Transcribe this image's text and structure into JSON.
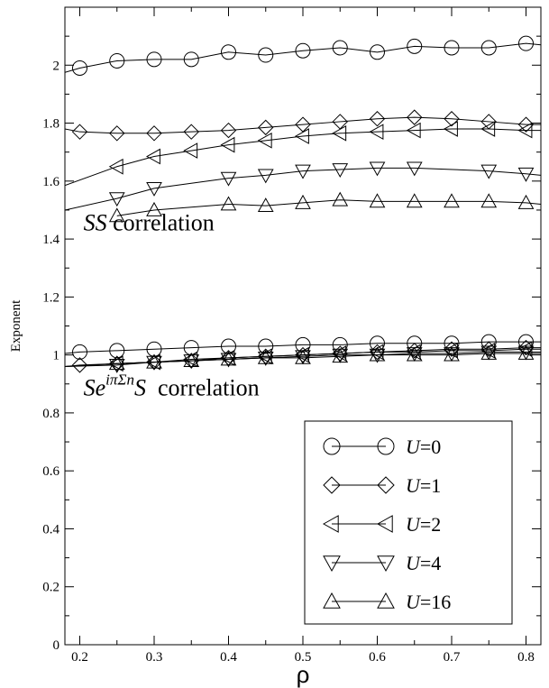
{
  "chart_data": {
    "type": "line",
    "xlabel": "ρ",
    "ylabel": "Exponent",
    "xlim": [
      0.18,
      0.82
    ],
    "ylim": [
      0,
      2.2
    ],
    "x_ticks": [
      0.2,
      0.3,
      0.4,
      0.5,
      0.6,
      0.7,
      0.8
    ],
    "x_tick_labels": [
      "0.2",
      "0.3",
      "0.4",
      "0.5",
      "0.6",
      "0.7",
      "0.8"
    ],
    "y_ticks": [
      0,
      0.2,
      0.4,
      0.6,
      0.8,
      1,
      1.2,
      1.4,
      1.6,
      1.8,
      2
    ],
    "y_tick_labels": [
      "0",
      "0.2",
      "0.4",
      "0.6",
      "0.8",
      "1",
      "1.2",
      "1.4",
      "1.6",
      "1.8",
      "2"
    ],
    "grid": false,
    "legend_position": "bottom-right",
    "annotations": [
      {
        "id": "ss",
        "italic": "SS",
        "text": " correlation",
        "x": 0.205,
        "y": 1.43
      },
      {
        "id": "string",
        "italic": "Se",
        "sup": "iπΣn",
        "italic2": "S",
        "text": "  correlation",
        "x": 0.205,
        "y": 0.86
      }
    ],
    "series": [
      {
        "name": "U=0",
        "var": "U",
        "val": "=0",
        "marker": "circle",
        "group": "ss",
        "x": [
          0.2,
          0.25,
          0.3,
          0.35,
          0.4,
          0.45,
          0.5,
          0.55,
          0.6,
          0.65,
          0.7,
          0.75,
          0.8
        ],
        "y": [
          1.99,
          2.015,
          2.02,
          2.02,
          2.045,
          2.035,
          2.05,
          2.06,
          2.045,
          2.065,
          2.06,
          2.06,
          2.075
        ],
        "ext_left": 1.975,
        "ext_right": 2.07
      },
      {
        "name": "U=1",
        "var": "U",
        "val": "=1",
        "marker": "diamond",
        "group": "ss",
        "x": [
          0.2,
          0.25,
          0.3,
          0.35,
          0.4,
          0.45,
          0.5,
          0.55,
          0.6,
          0.65,
          0.7,
          0.75,
          0.8
        ],
        "y": [
          1.77,
          1.765,
          1.765,
          1.77,
          1.775,
          1.785,
          1.795,
          1.805,
          1.815,
          1.82,
          1.815,
          1.805,
          1.795
        ],
        "ext_left": 1.78,
        "ext_right": 1.795
      },
      {
        "name": "U=2",
        "var": "U",
        "val": "=2",
        "marker": "triangle-left",
        "group": "ss",
        "x": [
          0.25,
          0.3,
          0.35,
          0.4,
          0.45,
          0.5,
          0.55,
          0.6,
          0.65,
          0.7,
          0.75,
          0.8
        ],
        "y": [
          1.65,
          1.685,
          1.705,
          1.725,
          1.74,
          1.755,
          1.765,
          1.77,
          1.775,
          1.78,
          1.78,
          1.775
        ],
        "ext_left": 1.585,
        "ext_right": 1.775
      },
      {
        "name": "U=4",
        "var": "U",
        "val": "=4",
        "marker": "triangle-down",
        "group": "ss",
        "x": [
          0.25,
          0.3,
          0.4,
          0.45,
          0.5,
          0.55,
          0.6,
          0.65,
          0.75,
          0.8
        ],
        "y": [
          1.54,
          1.575,
          1.61,
          1.62,
          1.635,
          1.64,
          1.645,
          1.645,
          1.635,
          1.625
        ],
        "ext_left": 1.5,
        "ext_right": 1.62
      },
      {
        "name": "U=16",
        "var": "U",
        "val": "=16",
        "marker": "triangle-up",
        "group": "ss",
        "x": [
          0.25,
          0.3,
          0.4,
          0.45,
          0.5,
          0.55,
          0.6,
          0.65,
          0.7,
          0.75,
          0.8
        ],
        "y": [
          1.48,
          1.5,
          1.52,
          1.515,
          1.525,
          1.535,
          1.53,
          1.53,
          1.53,
          1.53,
          1.525
        ],
        "ext_left": null,
        "ext_right": 1.52
      },
      {
        "name": "U=0",
        "var": "U",
        "val": "=0",
        "marker": "circle",
        "group": "string",
        "x": [
          0.2,
          0.25,
          0.3,
          0.35,
          0.4,
          0.45,
          0.5,
          0.55,
          0.6,
          0.65,
          0.7,
          0.75,
          0.8
        ],
        "y": [
          1.01,
          1.015,
          1.02,
          1.025,
          1.03,
          1.03,
          1.035,
          1.035,
          1.04,
          1.04,
          1.04,
          1.045,
          1.045
        ],
        "ext_left": 1.005,
        "ext_right": 1.045
      },
      {
        "name": "U=1",
        "var": "U",
        "val": "=1",
        "marker": "diamond",
        "group": "string",
        "x": [
          0.2,
          0.25,
          0.3,
          0.35,
          0.4,
          0.45,
          0.5,
          0.55,
          0.6,
          0.65,
          0.7,
          0.75,
          0.8
        ],
        "y": [
          0.965,
          0.97,
          0.975,
          0.98,
          0.99,
          0.995,
          1.0,
          1.005,
          1.01,
          1.015,
          1.02,
          1.02,
          1.025
        ],
        "ext_left": 0.96,
        "ext_right": 1.025
      },
      {
        "name": "U=2",
        "var": "U",
        "val": "=2",
        "marker": "triangle-left",
        "group": "string",
        "x": [
          0.25,
          0.3,
          0.35,
          0.4,
          0.45,
          0.5,
          0.55,
          0.6,
          0.65,
          0.7,
          0.75,
          0.8
        ],
        "y": [
          0.97,
          0.975,
          0.985,
          0.99,
          0.995,
          1.0,
          1.005,
          1.01,
          1.01,
          1.015,
          1.015,
          1.02
        ],
        "ext_left": 0.96,
        "ext_right": 1.02
      },
      {
        "name": "U=4",
        "var": "U",
        "val": "=4",
        "marker": "triangle-down",
        "group": "string",
        "x": [
          0.25,
          0.3,
          0.35,
          0.4,
          0.45,
          0.5,
          0.55,
          0.6,
          0.65,
          0.7,
          0.75,
          0.8
        ],
        "y": [
          0.965,
          0.975,
          0.98,
          0.985,
          0.99,
          0.995,
          1.0,
          1.0,
          1.005,
          1.005,
          1.01,
          1.01
        ],
        "ext_left": 0.96,
        "ext_right": 1.01
      },
      {
        "name": "U=16",
        "var": "U",
        "val": "=16",
        "marker": "triangle-up",
        "group": "string",
        "x": [
          0.25,
          0.3,
          0.35,
          0.4,
          0.45,
          0.5,
          0.55,
          0.6,
          0.65,
          0.7,
          0.75,
          0.8
        ],
        "y": [
          0.97,
          0.975,
          0.98,
          0.985,
          0.99,
          0.99,
          0.995,
          1.0,
          1.0,
          1.0,
          1.005,
          1.005
        ],
        "ext_left": 0.96,
        "ext_right": 1.005
      }
    ],
    "legend": [
      {
        "var": "U",
        "val": "=0",
        "marker": "circle"
      },
      {
        "var": "U",
        "val": "=1",
        "marker": "diamond"
      },
      {
        "var": "U",
        "val": "=2",
        "marker": "triangle-left"
      },
      {
        "var": "U",
        "val": "=4",
        "marker": "triangle-down"
      },
      {
        "var": "U",
        "val": "=16",
        "marker": "triangle-up"
      }
    ],
    "colors": {
      "line": "#000000",
      "background": "#ffffff"
    }
  }
}
